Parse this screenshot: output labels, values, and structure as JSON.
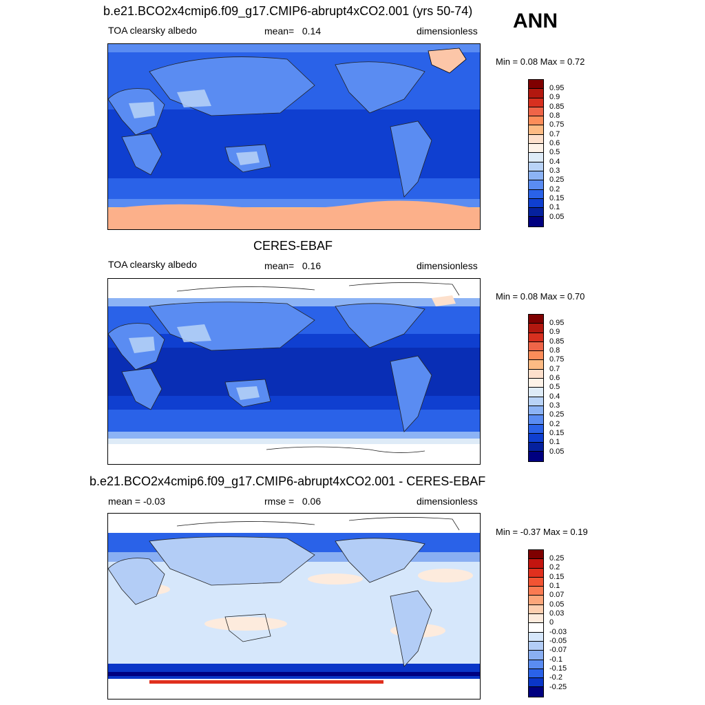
{
  "season": "ANN",
  "panels": [
    {
      "title": "b.e21.BCO2x4cmip6.f09_g17.CMIP6-abrupt4xCO2.001 (yrs 50-74)",
      "left_label": "TOA clearsky albedo",
      "stat_label": "mean=",
      "stat_value": "0.14",
      "units": "dimensionless",
      "minmax": "Min =   0.08 Max =   0.72",
      "colorbar_labels": [
        "0.95",
        "0.9",
        "0.85",
        "0.8",
        "0.75",
        "0.7",
        "0.6",
        "0.5",
        "0.4",
        "0.3",
        "0.25",
        "0.2",
        "0.15",
        "0.1",
        "0.05"
      ]
    },
    {
      "title": "CERES-EBAF",
      "left_label": "TOA clearsky albedo",
      "stat_label": "mean=",
      "stat_value": "0.16",
      "units": "dimensionless",
      "minmax": "Min =   0.08 Max =   0.70",
      "colorbar_labels": [
        "0.95",
        "0.9",
        "0.85",
        "0.8",
        "0.75",
        "0.7",
        "0.6",
        "0.5",
        "0.4",
        "0.3",
        "0.25",
        "0.2",
        "0.15",
        "0.1",
        "0.05"
      ]
    },
    {
      "title": "b.e21.BCO2x4cmip6.f09_g17.CMIP6-abrupt4xCO2.001 - CERES-EBAF",
      "left_label": "mean =  -0.03",
      "stat_label": "rmse =",
      "stat_value": "0.06",
      "units": "dimensionless",
      "minmax": "Min =  -0.37 Max =   0.19",
      "colorbar_labels": [
        "0.25",
        "0.2",
        "0.15",
        "0.1",
        "0.07",
        "0.05",
        "0.03",
        "0",
        "-0.03",
        "-0.05",
        "-0.07",
        "-0.1",
        "-0.15",
        "-0.2",
        "-0.25"
      ]
    }
  ],
  "colors": {
    "abs_scale": [
      "#7f0000",
      "#b2180f",
      "#d7301f",
      "#ef6548",
      "#fc8d59",
      "#fdbb84",
      "#fde0cc",
      "#fdf2e8",
      "#deebf7",
      "#b9d3f7",
      "#8cb3f5",
      "#5a8cf2",
      "#2a62e8",
      "#0f3fd0",
      "#05219e",
      "#000080"
    ],
    "diff_scale": [
      "#7f0000",
      "#c3150f",
      "#e0301e",
      "#f25433",
      "#fa7b52",
      "#fca67a",
      "#fdcfb0",
      "#fdebdd",
      "#ffffff",
      "#d6e7fb",
      "#b3cdf6",
      "#8aaff2",
      "#5a8cf2",
      "#2a62e8",
      "#0a36c8",
      "#000080"
    ]
  }
}
